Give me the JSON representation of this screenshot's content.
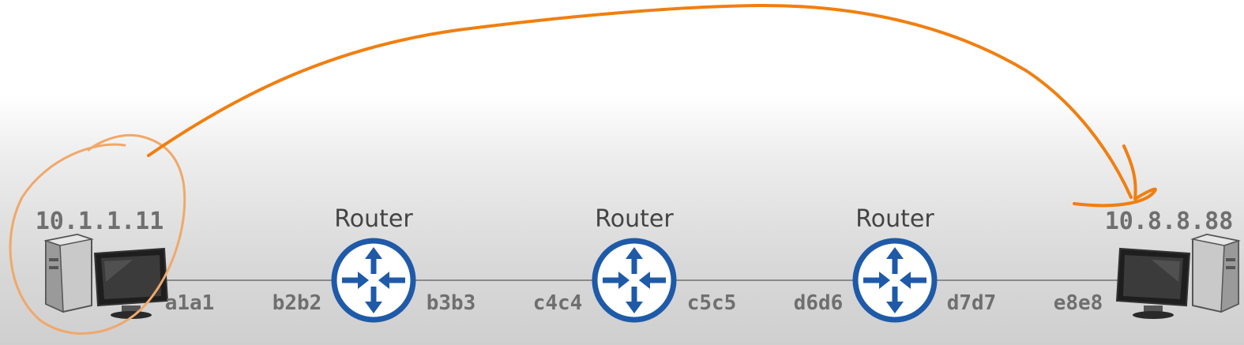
{
  "hosts": {
    "left": {
      "ip": "10.1.1.11",
      "mac": "a1a1"
    },
    "right": {
      "ip": "10.8.8.88",
      "mac": "e8e8"
    }
  },
  "routers": [
    {
      "label": "Router",
      "left_mac": "b2b2",
      "right_mac": "b3b3"
    },
    {
      "label": "Router",
      "left_mac": "c4c4",
      "right_mac": "c5c5"
    },
    {
      "label": "Router",
      "left_mac": "d6d6",
      "right_mac": "d7d7"
    }
  ],
  "colors": {
    "router_blue": "#1f5aa8",
    "annotation_orange": "#f07f10",
    "circle_orange": "#f0a86a",
    "link_gray": "#8a8a8a",
    "label_gray": "#6f6f6f"
  },
  "icons": {
    "host": "computer-icon",
    "router": "router-icon"
  }
}
